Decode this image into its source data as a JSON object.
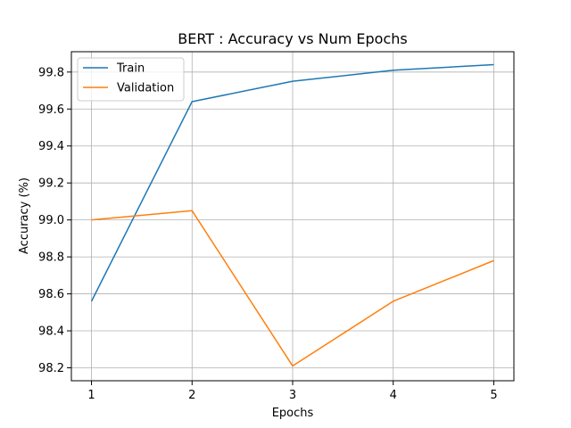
{
  "chart_data": {
    "type": "line",
    "title": "BERT : Accuracy vs Num Epochs",
    "xlabel": "Epochs",
    "ylabel": "Accuracy (%)",
    "x": [
      1,
      2,
      3,
      4,
      5
    ],
    "xticks": [
      "1",
      "2",
      "3",
      "4",
      "5"
    ],
    "yticks": [
      "98.2",
      "98.4",
      "98.6",
      "98.8",
      "99.0",
      "99.2",
      "99.4",
      "99.6",
      "99.8"
    ],
    "xlim": [
      0.8,
      5.2
    ],
    "ylim": [
      98.13,
      99.91
    ],
    "grid": true,
    "legend": "top-left",
    "series": [
      {
        "name": "Train",
        "color": "#1f77b4",
        "values": [
          98.56,
          99.64,
          99.75,
          99.81,
          99.84
        ]
      },
      {
        "name": "Validation",
        "color": "#ff7f0e",
        "values": [
          99.0,
          99.05,
          98.21,
          98.56,
          98.78
        ]
      }
    ]
  }
}
